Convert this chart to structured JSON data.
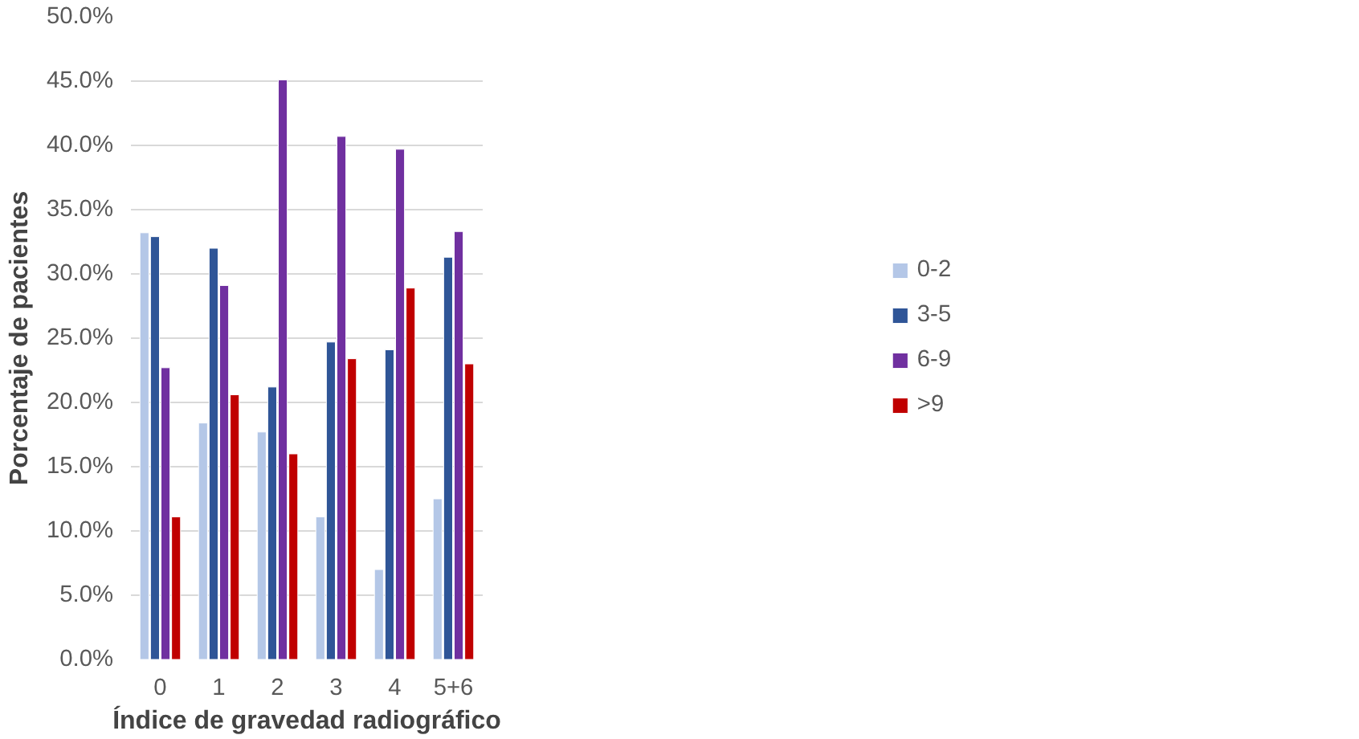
{
  "chart_data": {
    "type": "bar",
    "xlabel": "Índice de gravedad radiográfico",
    "ylabel": "Porcentaje de pacientes",
    "categories": [
      "0",
      "1",
      "2",
      "3",
      "4",
      "5+6"
    ],
    "series": [
      {
        "name": "0-2",
        "color": "#b4c7e7",
        "values": [
          33.2,
          18.4,
          17.7,
          11.1,
          7.0,
          12.5
        ]
      },
      {
        "name": "3-5",
        "color": "#2f5597",
        "values": [
          32.9,
          32.0,
          21.2,
          24.7,
          24.1,
          31.3
        ]
      },
      {
        "name": "6-9",
        "color": "#7030a0",
        "values": [
          22.7,
          29.1,
          45.1,
          40.7,
          39.7,
          33.3
        ]
      },
      {
        "name": ">9",
        "color": "#c00000",
        "values": [
          11.1,
          20.6,
          16.0,
          23.4,
          28.9,
          23.0
        ]
      }
    ],
    "ylim": [
      0,
      50
    ],
    "yticks": [
      {
        "value": 0,
        "label": "0.0%"
      },
      {
        "value": 5,
        "label": "5.0%"
      },
      {
        "value": 10,
        "label": "10.0%"
      },
      {
        "value": 15,
        "label": "15.0%"
      },
      {
        "value": 20,
        "label": "20.0%"
      },
      {
        "value": 25,
        "label": "25.0%"
      },
      {
        "value": 30,
        "label": "30.0%"
      },
      {
        "value": 35,
        "label": "35.0%"
      },
      {
        "value": 40,
        "label": "40.0%"
      },
      {
        "value": 45,
        "label": "45.0%"
      },
      {
        "value": 50,
        "label": "50.0%"
      }
    ],
    "grid": "y",
    "legend": "right"
  }
}
